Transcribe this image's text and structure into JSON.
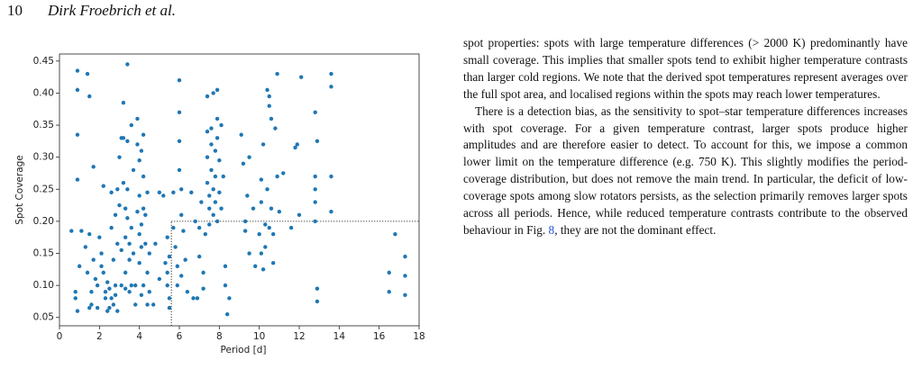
{
  "header": {
    "page_number": "10",
    "authors": "Dirk Froebrich et al."
  },
  "chart_data": {
    "type": "scatter",
    "xlabel": "Period [d]",
    "ylabel": "Spot Coverage",
    "color": "#1f77b4",
    "xlim": [
      0,
      18
    ],
    "ylim": [
      0.037,
      0.461
    ],
    "xticks": [
      0,
      2,
      4,
      6,
      8,
      10,
      12,
      14,
      16,
      18
    ],
    "yticks": [
      0.05,
      {
        "value": 0.1,
        "label": "0.10"
      },
      0.15,
      {
        "value": 0.2,
        "label": "0.20"
      },
      0.25,
      {
        "value": 0.3,
        "label": "0.30"
      },
      0.35,
      {
        "value": 0.4,
        "label": "0.40"
      },
      0.45
    ],
    "threshold": {
      "x": 5.6,
      "y": 0.2
    },
    "x": [
      0.6,
      0.9,
      0.9,
      0.9,
      0.9,
      0.8,
      0.8,
      0.9,
      1.0,
      1.1,
      1.4,
      1.4,
      1.3,
      1.5,
      1.5,
      1.6,
      1.6,
      1.5,
      1.7,
      1.7,
      1.8,
      1.9,
      1.9,
      2.0,
      2.1,
      2.1,
      2.2,
      2.2,
      2.3,
      2.3,
      2.4,
      2.4,
      2.5,
      2.5,
      2.6,
      2.6,
      2.6,
      2.7,
      2.7,
      2.8,
      2.8,
      2.8,
      2.9,
      2.9,
      2.9,
      3.0,
      3.0,
      3.1,
      3.1,
      3.1,
      3.2,
      3.2,
      3.2,
      3.3,
      3.3,
      3.3,
      3.3,
      3.4,
      3.4,
      3.4,
      3.4,
      3.5,
      3.5,
      3.5,
      3.6,
      3.6,
      3.6,
      3.7,
      3.7,
      3.8,
      3.8,
      3.9,
      3.9,
      3.9,
      4.0,
      4.0,
      4.0,
      4.0,
      4.1,
      4.1,
      4.1,
      4.1,
      4.2,
      4.2,
      4.2,
      4.2,
      4.3,
      4.3,
      4.4,
      4.4,
      4.4,
      4.5,
      4.5,
      4.7,
      4.8,
      5.0,
      5.0,
      5.2,
      5.3,
      5.4,
      5.4,
      5.5,
      5.5,
      5.4,
      5.5,
      5.7,
      5.7,
      5.8,
      5.9,
      5.9,
      6.0,
      6.0,
      6.0,
      6.0,
      6.1,
      6.1,
      6.1,
      6.2,
      6.3,
      6.4,
      6.6,
      6.7,
      6.8,
      6.9,
      7.0,
      7.0,
      7.1,
      7.2,
      7.2,
      7.3,
      7.4,
      7.4,
      7.4,
      7.4,
      7.5,
      7.5,
      7.5,
      7.6,
      7.6,
      7.6,
      7.7,
      7.7,
      7.7,
      7.8,
      7.8,
      7.8,
      7.9,
      7.9,
      7.9,
      7.9,
      8.0,
      8.0,
      8.1,
      8.1,
      8.2,
      8.3,
      8.3,
      8.4,
      8.5,
      9.1,
      9.2,
      9.3,
      9.3,
      9.4,
      9.5,
      9.5,
      9.7,
      9.8,
      10.0,
      10.1,
      10.1,
      10.1,
      10.2,
      10.2,
      10.3,
      10.3,
      10.4,
      10.4,
      10.5,
      10.5,
      10.5,
      10.6,
      10.6,
      10.7,
      10.7,
      10.8,
      10.9,
      10.9,
      11.0,
      11.2,
      11.6,
      11.8,
      11.9,
      12.0,
      12.1,
      12.8,
      12.8,
      12.8,
      12.8,
      12.8,
      12.9,
      12.9,
      12.9,
      13.6,
      13.6,
      13.6,
      13.6,
      16.5,
      16.5,
      16.8,
      17.3,
      17.3,
      17.3
    ],
    "values": [
      0.185,
      0.435,
      0.405,
      0.335,
      0.265,
      0.09,
      0.08,
      0.06,
      0.13,
      0.185,
      0.43,
      0.12,
      0.16,
      0.395,
      0.18,
      0.09,
      0.07,
      0.065,
      0.285,
      0.14,
      0.11,
      0.1,
      0.065,
      0.175,
      0.15,
      0.13,
      0.12,
      0.255,
      0.09,
      0.08,
      0.06,
      0.105,
      0.065,
      0.095,
      0.245,
      0.19,
      0.08,
      0.07,
      0.14,
      0.21,
      0.1,
      0.085,
      0.25,
      0.165,
      0.06,
      0.3,
      0.225,
      0.33,
      0.155,
      0.1,
      0.385,
      0.33,
      0.26,
      0.22,
      0.175,
      0.12,
      0.095,
      0.445,
      0.325,
      0.25,
      0.205,
      0.165,
      0.14,
      0.09,
      0.35,
      0.19,
      0.1,
      0.28,
      0.15,
      0.1,
      0.07,
      0.36,
      0.32,
      0.215,
      0.295,
      0.24,
      0.18,
      0.135,
      0.31,
      0.195,
      0.16,
      0.085,
      0.335,
      0.27,
      0.22,
      0.1,
      0.21,
      0.165,
      0.245,
      0.12,
      0.07,
      0.15,
      0.09,
      0.07,
      0.165,
      0.245,
      0.11,
      0.24,
      0.135,
      0.12,
      0.1,
      0.08,
      0.065,
      0.175,
      0.145,
      0.245,
      0.19,
      0.16,
      0.13,
      0.1,
      0.42,
      0.37,
      0.325,
      0.28,
      0.25,
      0.21,
      0.115,
      0.185,
      0.14,
      0.09,
      0.245,
      0.08,
      0.2,
      0.08,
      0.19,
      0.145,
      0.23,
      0.095,
      0.12,
      0.18,
      0.395,
      0.34,
      0.3,
      0.26,
      0.24,
      0.22,
      0.195,
      0.345,
      0.32,
      0.28,
      0.4,
      0.25,
      0.21,
      0.31,
      0.27,
      0.23,
      0.405,
      0.36,
      0.33,
      0.2,
      0.295,
      0.245,
      0.35,
      0.22,
      0.27,
      0.13,
      0.1,
      0.055,
      0.08,
      0.335,
      0.29,
      0.2,
      0.185,
      0.24,
      0.3,
      0.15,
      0.22,
      0.13,
      0.18,
      0.265,
      0.23,
      0.15,
      0.125,
      0.32,
      0.195,
      0.16,
      0.405,
      0.25,
      0.19,
      0.395,
      0.38,
      0.36,
      0.22,
      0.18,
      0.135,
      0.345,
      0.43,
      0.27,
      0.215,
      0.275,
      0.19,
      0.315,
      0.32,
      0.21,
      0.425,
      0.37,
      0.27,
      0.25,
      0.23,
      0.2,
      0.095,
      0.075,
      0.325,
      0.43,
      0.41,
      0.27,
      0.215,
      0.12,
      0.09,
      0.18,
      0.145,
      0.115,
      0.085
    ]
  },
  "text": {
    "p1": "spot properties: spots with large temperature differences (> 2000 K) predominantly have small coverage. This implies that smaller spots tend to exhibit higher temperature contrasts than larger cold regions. We note that the derived spot temperatures represent averages over the full spot area, and localised regions within the spots may reach lower temperatures.",
    "p2_before": "There is a detection bias, as the sensitivity to spot–star temperature differences increases with spot coverage. For a given temperature contrast, larger spots produce higher amplitudes and are therefore easier to detect. To account for this, we impose a common lower limit on the temperature difference (e.g. 750 K). This slightly modifies the period-coverage distribution, but does not remove the main trend. In particular, the deficit of low-coverage spots among slow rotators persists, as the selection primarily removes larger spots across all periods. Hence, while reduced temperature contrasts contribute to the observed behaviour in Fig. ",
    "p2_link": "8",
    "p2_after": ", they are not the dominant effect."
  }
}
